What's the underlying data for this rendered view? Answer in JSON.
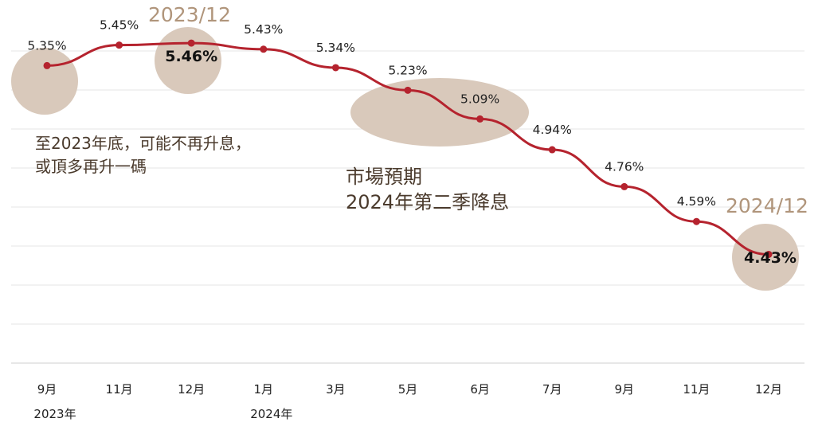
{
  "chart_data": {
    "type": "line",
    "categories": [
      "9月",
      "11月",
      "12月",
      "1月",
      "3月",
      "5月",
      "6月",
      "7月",
      "9月",
      "11月",
      "12月"
    ],
    "year_labels": [
      "2023年",
      "",
      "",
      "2024年",
      "",
      "",
      "",
      "",
      "",
      "",
      ""
    ],
    "series": [
      {
        "values": [
          5.35,
          5.45,
          5.46,
          5.43,
          5.34,
          5.23,
          5.09,
          4.94,
          4.76,
          4.59,
          4.43
        ]
      }
    ],
    "data_labels": [
      "5.35%",
      "5.45%",
      "5.46%",
      "5.43%",
      "5.34%",
      "5.23%",
      "5.09%",
      "4.94%",
      "4.76%",
      "4.59%",
      "4.43%"
    ],
    "ylim": [
      3.9,
      5.6
    ],
    "grid": true,
    "line_color": "#b5232e",
    "highlight_color": "#d9c9bb",
    "callout_color": "#b0957b",
    "annotations": {
      "peak_period": "2023/12",
      "end_period": "2024/12",
      "note_left_line1": "至2023年底，可能不再升息，",
      "note_left_line2": "或頂多再升一碼",
      "note_mid_line1": "市場預期",
      "note_mid_line2": "2024年第二季降息"
    }
  }
}
